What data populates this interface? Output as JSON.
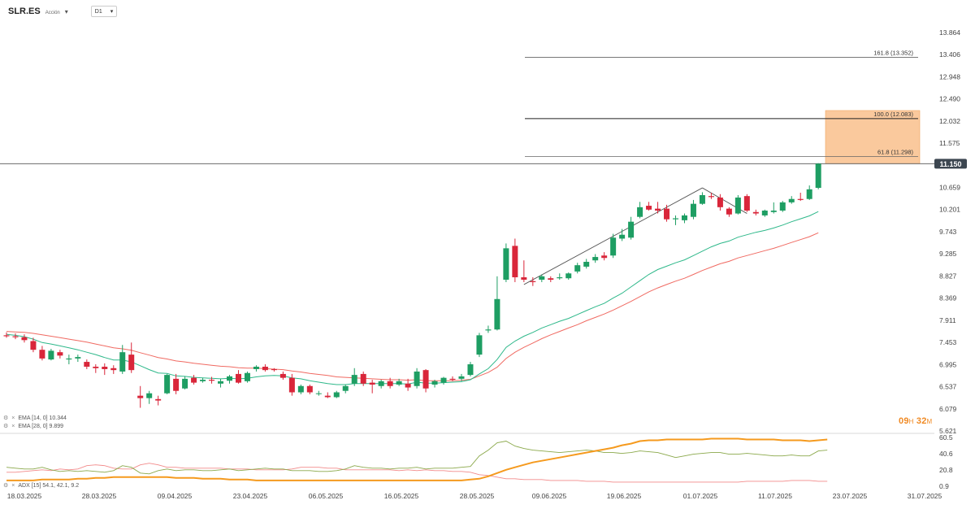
{
  "header": {
    "symbol": "SLR.ES",
    "exchange": "Acción",
    "timeframe": "D1"
  },
  "indicators_legend": [
    {
      "label": "EMA [14, 0] 10.344",
      "color": "#2eb88a"
    },
    {
      "label": "EMA [28, 0] 9.899",
      "color": "#f06a62"
    }
  ],
  "adx_legend": {
    "label": "ADX [15] 54.1, 42.1, 9.2"
  },
  "countdown": {
    "hours": "09",
    "h_unit": "H",
    "minutes": "32",
    "m_unit": "M"
  },
  "current_price": "11.150",
  "colors": {
    "up": "#1e9e63",
    "down": "#d9263a",
    "ema14": "#2eb88a",
    "ema28": "#f06a62",
    "box": "#f9c08c",
    "adx": "#f59a1e",
    "di_plus": "#8aa84a",
    "di_minus": "#f28a8a"
  },
  "chart_data": {
    "type": "candlestick",
    "y_axis_ticks": [
      "13.864",
      "13.406",
      "12.948",
      "12.490",
      "12.032",
      "11.575",
      "11.150",
      "10.659",
      "10.201",
      "9.743",
      "9.285",
      "8.827",
      "8.369",
      "7.911",
      "7.453",
      "6.995",
      "6.537",
      "6.079",
      "5.621"
    ],
    "x_axis_ticks": [
      "18.03.2025",
      "28.03.2025",
      "09.04.2025",
      "23.04.2025",
      "06.05.2025",
      "16.05.2025",
      "28.05.2025",
      "09.06.2025",
      "19.06.2025",
      "01.07.2025",
      "11.07.2025",
      "23.07.2025",
      "31.07.2025"
    ],
    "ylim": [
      5.621,
      13.864
    ],
    "candles": [
      {
        "o": 7.6,
        "h": 7.66,
        "l": 7.55,
        "c": 7.58
      },
      {
        "o": 7.58,
        "h": 7.64,
        "l": 7.52,
        "c": 7.56
      },
      {
        "o": 7.56,
        "h": 7.62,
        "l": 7.45,
        "c": 7.5
      },
      {
        "o": 7.48,
        "h": 7.55,
        "l": 7.25,
        "c": 7.3
      },
      {
        "o": 7.3,
        "h": 7.38,
        "l": 7.08,
        "c": 7.12
      },
      {
        "o": 7.1,
        "h": 7.32,
        "l": 7.08,
        "c": 7.28
      },
      {
        "o": 7.25,
        "h": 7.3,
        "l": 7.12,
        "c": 7.18
      },
      {
        "o": 7.1,
        "h": 7.2,
        "l": 7.0,
        "c": 7.12
      },
      {
        "o": 7.12,
        "h": 7.2,
        "l": 7.05,
        "c": 7.15
      },
      {
        "o": 7.05,
        "h": 7.1,
        "l": 6.9,
        "c": 6.95
      },
      {
        "o": 6.95,
        "h": 7.0,
        "l": 6.82,
        "c": 6.92
      },
      {
        "o": 6.95,
        "h": 7.02,
        "l": 6.78,
        "c": 6.9
      },
      {
        "o": 6.92,
        "h": 6.98,
        "l": 6.8,
        "c": 6.88
      },
      {
        "o": 6.85,
        "h": 7.4,
        "l": 6.8,
        "c": 7.25
      },
      {
        "o": 7.2,
        "h": 7.45,
        "l": 6.82,
        "c": 6.88
      },
      {
        "o": 6.35,
        "h": 6.55,
        "l": 6.1,
        "c": 6.3
      },
      {
        "o": 6.3,
        "h": 6.45,
        "l": 6.18,
        "c": 6.4
      },
      {
        "o": 6.28,
        "h": 6.35,
        "l": 6.15,
        "c": 6.25
      },
      {
        "o": 6.4,
        "h": 6.8,
        "l": 6.38,
        "c": 6.78
      },
      {
        "o": 6.7,
        "h": 6.8,
        "l": 6.38,
        "c": 6.45
      },
      {
        "o": 6.5,
        "h": 6.75,
        "l": 6.48,
        "c": 6.7
      },
      {
        "o": 6.72,
        "h": 6.78,
        "l": 6.58,
        "c": 6.62
      },
      {
        "o": 6.65,
        "h": 6.72,
        "l": 6.62,
        "c": 6.68
      },
      {
        "o": 6.68,
        "h": 6.74,
        "l": 6.6,
        "c": 6.66
      },
      {
        "o": 6.6,
        "h": 6.7,
        "l": 6.52,
        "c": 6.65
      },
      {
        "o": 6.66,
        "h": 6.78,
        "l": 6.6,
        "c": 6.75
      },
      {
        "o": 6.8,
        "h": 6.88,
        "l": 6.6,
        "c": 6.62
      },
      {
        "o": 6.65,
        "h": 6.85,
        "l": 6.62,
        "c": 6.82
      },
      {
        "o": 6.9,
        "h": 6.98,
        "l": 6.85,
        "c": 6.95
      },
      {
        "o": 6.95,
        "h": 7.0,
        "l": 6.85,
        "c": 6.88
      },
      {
        "o": 6.9,
        "h": 6.92,
        "l": 6.85,
        "c": 6.88
      },
      {
        "o": 6.8,
        "h": 6.85,
        "l": 6.68,
        "c": 6.72
      },
      {
        "o": 6.72,
        "h": 6.8,
        "l": 6.35,
        "c": 6.42
      },
      {
        "o": 6.42,
        "h": 6.58,
        "l": 6.38,
        "c": 6.55
      },
      {
        "o": 6.55,
        "h": 6.58,
        "l": 6.38,
        "c": 6.42
      },
      {
        "o": 6.4,
        "h": 6.45,
        "l": 6.35,
        "c": 6.4
      },
      {
        "o": 6.35,
        "h": 6.42,
        "l": 6.3,
        "c": 6.32
      },
      {
        "o": 6.32,
        "h": 6.45,
        "l": 6.3,
        "c": 6.42
      },
      {
        "o": 6.45,
        "h": 6.58,
        "l": 6.4,
        "c": 6.55
      },
      {
        "o": 6.6,
        "h": 6.92,
        "l": 6.55,
        "c": 6.78
      },
      {
        "o": 6.8,
        "h": 6.85,
        "l": 6.55,
        "c": 6.6
      },
      {
        "o": 6.62,
        "h": 6.68,
        "l": 6.4,
        "c": 6.58
      },
      {
        "o": 6.55,
        "h": 6.68,
        "l": 6.5,
        "c": 6.65
      },
      {
        "o": 6.65,
        "h": 6.72,
        "l": 6.5,
        "c": 6.55
      },
      {
        "o": 6.58,
        "h": 6.7,
        "l": 6.55,
        "c": 6.65
      },
      {
        "o": 6.6,
        "h": 6.7,
        "l": 6.45,
        "c": 6.52
      },
      {
        "o": 6.55,
        "h": 6.92,
        "l": 6.5,
        "c": 6.85
      },
      {
        "o": 6.88,
        "h": 6.9,
        "l": 6.42,
        "c": 6.5
      },
      {
        "o": 6.58,
        "h": 6.68,
        "l": 6.52,
        "c": 6.65
      },
      {
        "o": 6.62,
        "h": 6.74,
        "l": 6.58,
        "c": 6.72
      },
      {
        "o": 6.7,
        "h": 6.75,
        "l": 6.65,
        "c": 6.68
      },
      {
        "o": 6.7,
        "h": 6.8,
        "l": 6.65,
        "c": 6.75
      },
      {
        "o": 6.78,
        "h": 7.05,
        "l": 6.75,
        "c": 7.0
      },
      {
        "o": 7.2,
        "h": 7.65,
        "l": 7.15,
        "c": 7.6
      },
      {
        "o": 7.7,
        "h": 7.8,
        "l": 7.65,
        "c": 7.72
      },
      {
        "o": 7.72,
        "h": 8.82,
        "l": 7.7,
        "c": 8.35
      },
      {
        "o": 8.75,
        "h": 9.5,
        "l": 8.7,
        "c": 9.4
      },
      {
        "o": 9.45,
        "h": 9.6,
        "l": 8.7,
        "c": 8.8
      },
      {
        "o": 8.8,
        "h": 9.15,
        "l": 8.7,
        "c": 8.75
      },
      {
        "o": 8.72,
        "h": 8.8,
        "l": 8.62,
        "c": 8.7
      },
      {
        "o": 8.75,
        "h": 8.86,
        "l": 8.7,
        "c": 8.82
      },
      {
        "o": 8.78,
        "h": 8.82,
        "l": 8.7,
        "c": 8.75
      },
      {
        "o": 8.78,
        "h": 8.88,
        "l": 8.75,
        "c": 8.8
      },
      {
        "o": 8.78,
        "h": 8.9,
        "l": 8.75,
        "c": 8.88
      },
      {
        "o": 8.92,
        "h": 9.1,
        "l": 8.88,
        "c": 9.05
      },
      {
        "o": 9.02,
        "h": 9.18,
        "l": 8.98,
        "c": 9.12
      },
      {
        "o": 9.15,
        "h": 9.28,
        "l": 9.1,
        "c": 9.22
      },
      {
        "o": 9.25,
        "h": 9.32,
        "l": 9.15,
        "c": 9.2
      },
      {
        "o": 9.25,
        "h": 9.7,
        "l": 9.2,
        "c": 9.62
      },
      {
        "o": 9.6,
        "h": 9.8,
        "l": 9.55,
        "c": 9.68
      },
      {
        "o": 9.62,
        "h": 10.05,
        "l": 9.58,
        "c": 9.95
      },
      {
        "o": 10.05,
        "h": 10.36,
        "l": 10.02,
        "c": 10.25
      },
      {
        "o": 10.28,
        "h": 10.36,
        "l": 10.18,
        "c": 10.2
      },
      {
        "o": 10.22,
        "h": 10.36,
        "l": 10.12,
        "c": 10.18
      },
      {
        "o": 10.22,
        "h": 10.3,
        "l": 9.95,
        "c": 10.0
      },
      {
        "o": 10.0,
        "h": 10.08,
        "l": 9.88,
        "c": 10.02
      },
      {
        "o": 9.98,
        "h": 10.12,
        "l": 9.92,
        "c": 10.08
      },
      {
        "o": 10.05,
        "h": 10.4,
        "l": 10.0,
        "c": 10.32
      },
      {
        "o": 10.32,
        "h": 10.56,
        "l": 10.3,
        "c": 10.5
      },
      {
        "o": 10.48,
        "h": 10.55,
        "l": 10.42,
        "c": 10.46
      },
      {
        "o": 10.45,
        "h": 10.52,
        "l": 10.18,
        "c": 10.25
      },
      {
        "o": 10.22,
        "h": 10.25,
        "l": 10.05,
        "c": 10.1
      },
      {
        "o": 10.12,
        "h": 10.5,
        "l": 10.1,
        "c": 10.45
      },
      {
        "o": 10.48,
        "h": 10.52,
        "l": 10.15,
        "c": 10.18
      },
      {
        "o": 10.15,
        "h": 10.2,
        "l": 10.08,
        "c": 10.12
      },
      {
        "o": 10.08,
        "h": 10.2,
        "l": 10.05,
        "c": 10.18
      },
      {
        "o": 10.15,
        "h": 10.35,
        "l": 10.12,
        "c": 10.18
      },
      {
        "o": 10.18,
        "h": 10.38,
        "l": 10.15,
        "c": 10.35
      },
      {
        "o": 10.35,
        "h": 10.48,
        "l": 10.32,
        "c": 10.42
      },
      {
        "o": 10.42,
        "h": 10.55,
        "l": 10.38,
        "c": 10.4
      },
      {
        "o": 10.42,
        "h": 10.7,
        "l": 10.4,
        "c": 10.62
      },
      {
        "o": 10.65,
        "h": 11.16,
        "l": 10.62,
        "c": 11.15
      }
    ],
    "ema14": [
      7.62,
      7.6,
      7.57,
      7.52,
      7.45,
      7.42,
      7.38,
      7.34,
      7.3,
      7.25,
      7.2,
      7.14,
      7.09,
      7.09,
      7.05,
      6.97,
      6.89,
      6.82,
      6.81,
      6.76,
      6.75,
      6.73,
      6.72,
      6.71,
      6.7,
      6.71,
      6.7,
      6.71,
      6.74,
      6.76,
      6.77,
      6.76,
      6.72,
      6.7,
      6.66,
      6.63,
      6.6,
      6.58,
      6.58,
      6.6,
      6.6,
      6.6,
      6.6,
      6.6,
      6.6,
      6.59,
      6.63,
      6.61,
      6.61,
      6.62,
      6.63,
      6.64,
      6.68,
      6.8,
      6.91,
      7.1,
      7.35,
      7.48,
      7.58,
      7.66,
      7.75,
      7.82,
      7.89,
      7.95,
      8.03,
      8.11,
      8.19,
      8.26,
      8.37,
      8.47,
      8.6,
      8.73,
      8.86,
      8.96,
      9.03,
      9.1,
      9.16,
      9.25,
      9.34,
      9.43,
      9.5,
      9.55,
      9.63,
      9.68,
      9.73,
      9.77,
      9.82,
      9.88,
      9.95,
      10.01,
      10.07,
      10.16
    ],
    "ema28": [
      7.68,
      7.67,
      7.66,
      7.64,
      7.61,
      7.58,
      7.55,
      7.52,
      7.49,
      7.46,
      7.42,
      7.38,
      7.34,
      7.32,
      7.29,
      7.24,
      7.19,
      7.14,
      7.11,
      7.07,
      7.05,
      7.02,
      7.0,
      6.98,
      6.96,
      6.95,
      6.93,
      6.92,
      6.92,
      6.91,
      6.9,
      6.89,
      6.86,
      6.84,
      6.81,
      6.79,
      6.77,
      6.74,
      6.73,
      6.72,
      6.71,
      6.7,
      6.69,
      6.68,
      6.68,
      6.67,
      6.68,
      6.66,
      6.66,
      6.66,
      6.66,
      6.67,
      6.69,
      6.76,
      6.83,
      6.94,
      7.12,
      7.25,
      7.35,
      7.44,
      7.53,
      7.61,
      7.68,
      7.75,
      7.82,
      7.9,
      7.97,
      8.04,
      8.12,
      8.21,
      8.3,
      8.4,
      8.5,
      8.58,
      8.65,
      8.72,
      8.78,
      8.86,
      8.94,
      9.01,
      9.08,
      9.13,
      9.2,
      9.25,
      9.3,
      9.35,
      9.4,
      9.46,
      9.52,
      9.58,
      9.64,
      9.72
    ],
    "fib_levels": [
      {
        "label": "161.8 (13.352)",
        "value": 13.352
      },
      {
        "label": "100.0 (12.083)",
        "value": 12.083
      },
      {
        "label": "61.8 (11.298)",
        "value": 11.298
      }
    ],
    "box": {
      "top": 12.25,
      "bottom": 11.15
    },
    "trend_lines": [
      [
        [
          58,
          8.65
        ],
        [
          78,
          10.65
        ]
      ],
      [
        [
          78,
          10.65
        ],
        [
          83,
          10.12
        ]
      ]
    ],
    "adx_panel": {
      "ticks": [
        "60.5",
        "40.6",
        "20.8",
        "0.9"
      ],
      "ylim": [
        0.9,
        60.5
      ],
      "adx": [
        8,
        8,
        8,
        8,
        9,
        9,
        9,
        9,
        10,
        10,
        11,
        11,
        12,
        12,
        12,
        12,
        12,
        12,
        12,
        11,
        11,
        11,
        10,
        10,
        10,
        9,
        9,
        9,
        8,
        8,
        8,
        8,
        8,
        8,
        8,
        8,
        8,
        8,
        8,
        8,
        8,
        8,
        8,
        8,
        8,
        8,
        8,
        8,
        8,
        8,
        8,
        8,
        9,
        10,
        13,
        17,
        21,
        24,
        27,
        30,
        32,
        34,
        36,
        38,
        40,
        42,
        44,
        46,
        48,
        51,
        53,
        56,
        57,
        57,
        58,
        58,
        58,
        58,
        58,
        59,
        59,
        59,
        59,
        58,
        58,
        58,
        58,
        57,
        57,
        57,
        56,
        57,
        58
      ],
      "di_plus": [
        24,
        23,
        22,
        22,
        24,
        21,
        19,
        20,
        19,
        20,
        19,
        18,
        20,
        26,
        24,
        17,
        16,
        20,
        22,
        20,
        21,
        21,
        20,
        20,
        21,
        22,
        20,
        21,
        22,
        23,
        22,
        22,
        20,
        20,
        20,
        19,
        19,
        20,
        22,
        26,
        24,
        23,
        23,
        22,
        23,
        23,
        24,
        22,
        23,
        23,
        23,
        24,
        25,
        38,
        45,
        54,
        56,
        50,
        47,
        45,
        44,
        43,
        42,
        43,
        44,
        45,
        44,
        42,
        42,
        41,
        42,
        44,
        43,
        42,
        39,
        36,
        38,
        40,
        41,
        42,
        42,
        40,
        40,
        41,
        40,
        39,
        38,
        38,
        39,
        38,
        38,
        44,
        45
      ],
      "di_minus": [
        18,
        18,
        19,
        20,
        21,
        20,
        22,
        21,
        22,
        26,
        27,
        26,
        23,
        22,
        22,
        27,
        29,
        27,
        24,
        24,
        23,
        23,
        23,
        23,
        23,
        22,
        22,
        22,
        21,
        21,
        21,
        21,
        22,
        24,
        24,
        24,
        23,
        23,
        21,
        21,
        21,
        21,
        21,
        21,
        20,
        21,
        20,
        21,
        20,
        20,
        19,
        19,
        18,
        15,
        14,
        12,
        10,
        10,
        9,
        9,
        9,
        8,
        8,
        8,
        8,
        7,
        7,
        7,
        6,
        6,
        6,
        6,
        6,
        6,
        6,
        6,
        6,
        6,
        6,
        6,
        6,
        6,
        6,
        7,
        7,
        7,
        7,
        7,
        8,
        8,
        8,
        7,
        7
      ]
    }
  }
}
